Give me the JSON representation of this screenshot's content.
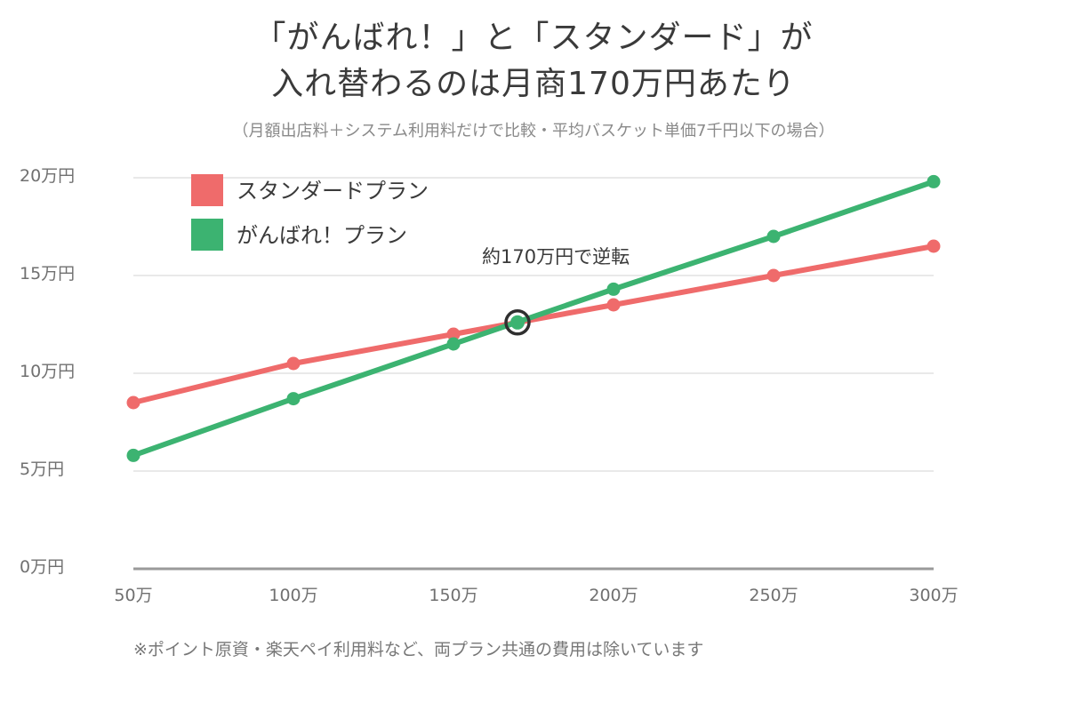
{
  "chart_data": {
    "type": "line",
    "title_line1": "「がんばれ！」と「スタンダード」が",
    "title_line2": "入れ替わるのは月商170万円あたり",
    "subtitle": "（月額出店料＋システム利用料だけで比較・平均バスケット単価7千円以下の場合）",
    "footnote": "※ポイント原資・楽天ペイ利用料など、両プラン共通の費用は除いています",
    "x": [
      50,
      100,
      150,
      200,
      250,
      300
    ],
    "x_tick_labels": [
      "50万",
      "100万",
      "150万",
      "200万",
      "250万",
      "300万"
    ],
    "xlim": [
      50,
      300
    ],
    "y_ticks": [
      0,
      5,
      10,
      15,
      20
    ],
    "y_tick_labels": [
      "0万円",
      "5万円",
      "10万円",
      "15万円",
      "20万円"
    ],
    "ylim": [
      0,
      20
    ],
    "grid": true,
    "legend_position": "top-left",
    "series": [
      {
        "name": "スタンダードプラン",
        "color": "#ef6b6b",
        "values": [
          8.5,
          10.5,
          12.0,
          13.5,
          15.0,
          16.5
        ]
      },
      {
        "name": "がんばれ！プラン",
        "color": "#3cb371",
        "values": [
          5.8,
          8.7,
          11.5,
          14.3,
          17.0,
          19.8
        ]
      }
    ],
    "annotation": {
      "text": "約170万円で逆転",
      "x": 170,
      "y": 12.6
    }
  }
}
